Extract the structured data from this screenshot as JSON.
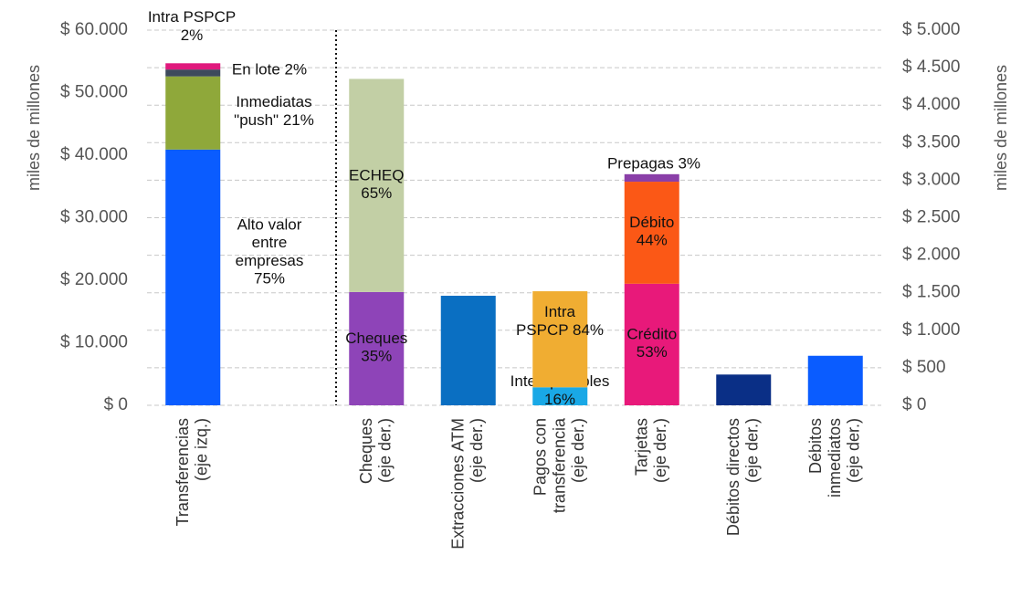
{
  "chart_data": {
    "type": "bar",
    "stacked": true,
    "y_label": "miles de millones",
    "y2_label": "miles de millones",
    "categories": [
      "Transferencias\n(eje izq.)",
      null,
      "Cheques\n(eje der.)",
      "Extracciones ATM\n(eje der.)",
      "Pagos con\ntransferencia\n(eje der.)",
      "Tarjetas\n(eje der.)",
      "Débitos directos\n(eje der.)",
      "Débitos\ninmediatos\n(eje der.)"
    ],
    "ylim": [
      0,
      60000
    ],
    "yticks": [
      {
        "value": 0,
        "label": "$ 0"
      },
      {
        "value": 10000,
        "label": "$ 10.000"
      },
      {
        "value": 20000,
        "label": "$ 20.000"
      },
      {
        "value": 30000,
        "label": "$ 30.000"
      },
      {
        "value": 40000,
        "label": "$ 40.000"
      },
      {
        "value": 50000,
        "label": "$ 50.000"
      },
      {
        "value": 60000,
        "label": "$ 60.000"
      }
    ],
    "y2lim": [
      0,
      5000
    ],
    "y2ticks": [
      {
        "value": 0,
        "label": "$ 0"
      },
      {
        "value": 500,
        "label": "$ 500"
      },
      {
        "value": 1000,
        "label": "$ 1.000"
      },
      {
        "value": 1500,
        "label": "$ 1.500"
      },
      {
        "value": 2000,
        "label": "$ 2.000"
      },
      {
        "value": 2500,
        "label": "$ 2.500"
      },
      {
        "value": 3000,
        "label": "$ 3.000"
      },
      {
        "value": 3500,
        "label": "$ 3.500"
      },
      {
        "value": 4000,
        "label": "$ 4.000"
      },
      {
        "value": 4500,
        "label": "$ 4.500"
      },
      {
        "value": 5000,
        "label": "$ 5.000"
      }
    ],
    "grid": true,
    "series": [
      {
        "label": "Alto valor\nentre\nempresas\n75%",
        "color": "#0a5cff",
        "axis": "y",
        "values": [
          40900,
          null,
          null,
          null,
          null,
          null,
          null,
          null
        ]
      },
      {
        "label": "Inmediatas\n\"push\" 21%",
        "color": "#8fa83a",
        "axis": "y",
        "values": [
          11700,
          null,
          null,
          null,
          null,
          null,
          null,
          null
        ]
      },
      {
        "label": "En lote 2%",
        "color": "#3d4a5c",
        "axis": "y",
        "values": [
          1100,
          null,
          null,
          null,
          null,
          null,
          null,
          null
        ]
      },
      {
        "label": "Intra PSPCP\n2%",
        "color": "#e0197d",
        "axis": "y",
        "values": [
          1000,
          null,
          null,
          null,
          null,
          null,
          null,
          null
        ]
      },
      {
        "label": "Cheques\n35%",
        "color": "#8e44b8",
        "axis": "y2",
        "values": [
          null,
          null,
          1510,
          null,
          null,
          null,
          null,
          null
        ]
      },
      {
        "label": "ECHEQ\n65%",
        "color": "#c2cfa5",
        "axis": "y2",
        "values": [
          null,
          null,
          2840,
          null,
          null,
          null,
          null,
          null
        ]
      },
      {
        "color": "#0a6fc2",
        "axis": "y2",
        "values": [
          null,
          null,
          null,
          1460,
          null,
          null,
          null,
          null
        ]
      },
      {
        "label": "Interoperables\n16%",
        "color": "#19a8e6",
        "axis": "y2",
        "values": [
          null,
          null,
          null,
          null,
          240,
          null,
          null,
          null
        ]
      },
      {
        "label": "Intra\nPSPCP 84%",
        "color": "#f0ad32",
        "axis": "y2",
        "values": [
          null,
          null,
          null,
          null,
          1280,
          null,
          null,
          null
        ]
      },
      {
        "label": "Crédito\n53%",
        "color": "#e8197a",
        "axis": "y2",
        "values": [
          null,
          null,
          null,
          null,
          null,
          1620,
          null,
          null
        ]
      },
      {
        "label": "Débito\n44%",
        "color": "#fb5816",
        "axis": "y2",
        "values": [
          null,
          null,
          null,
          null,
          null,
          1360,
          null,
          null
        ]
      },
      {
        "label": "Prepagas  3%",
        "color": "#8a3fa8",
        "axis": "y2",
        "values": [
          null,
          null,
          null,
          null,
          null,
          100,
          null,
          null
        ]
      },
      {
        "color": "#0a2f86",
        "axis": "y2",
        "values": [
          null,
          null,
          null,
          null,
          null,
          null,
          410,
          null
        ]
      },
      {
        "color": "#0a5cff",
        "axis": "y2",
        "values": [
          null,
          null,
          null,
          null,
          null,
          null,
          null,
          660
        ]
      }
    ]
  }
}
